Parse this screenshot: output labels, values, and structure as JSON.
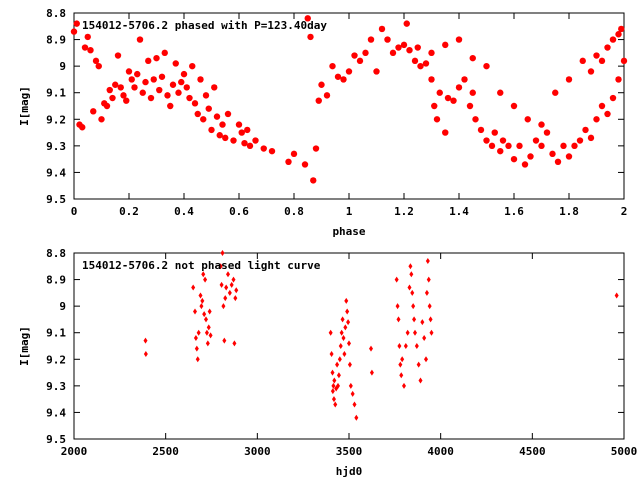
{
  "chart_data": [
    {
      "type": "scatter",
      "title": "154012-5706.2 phased with P=123.40day",
      "xlabel": "phase",
      "ylabel": "I[mag]",
      "xlim": [
        0,
        2
      ],
      "ylim": [
        8.8,
        9.5
      ],
      "y_inverted": true,
      "grid": false,
      "xticks": [
        "0",
        "0.2",
        "0.4",
        "0.6",
        "0.8",
        "1",
        "1.2",
        "1.4",
        "1.6",
        "1.8",
        "2"
      ],
      "yticks": [
        "8.8",
        "8.9",
        "9",
        "9.1",
        "9.2",
        "9.3",
        "9.4",
        "9.5"
      ],
      "marker_color": "#ff0000",
      "points": [
        [
          0.0,
          8.87
        ],
        [
          0.01,
          8.84
        ],
        [
          0.02,
          9.22
        ],
        [
          0.03,
          9.23
        ],
        [
          0.04,
          8.93
        ],
        [
          0.05,
          8.89
        ],
        [
          0.06,
          8.94
        ],
        [
          0.07,
          9.17
        ],
        [
          0.08,
          8.98
        ],
        [
          0.09,
          9.0
        ],
        [
          0.1,
          9.2
        ],
        [
          0.11,
          9.14
        ],
        [
          0.12,
          9.15
        ],
        [
          0.13,
          9.09
        ],
        [
          0.14,
          9.12
        ],
        [
          0.15,
          9.07
        ],
        [
          0.16,
          8.96
        ],
        [
          0.17,
          9.08
        ],
        [
          0.18,
          9.11
        ],
        [
          0.19,
          9.13
        ],
        [
          0.2,
          9.02
        ],
        [
          0.21,
          9.05
        ],
        [
          0.22,
          9.08
        ],
        [
          0.23,
          9.03
        ],
        [
          0.24,
          8.9
        ],
        [
          0.25,
          9.1
        ],
        [
          0.26,
          9.06
        ],
        [
          0.27,
          8.98
        ],
        [
          0.28,
          9.12
        ],
        [
          0.29,
          9.05
        ],
        [
          0.3,
          8.97
        ],
        [
          0.31,
          9.09
        ],
        [
          0.32,
          9.04
        ],
        [
          0.33,
          8.95
        ],
        [
          0.34,
          9.11
        ],
        [
          0.35,
          9.15
        ],
        [
          0.36,
          9.07
        ],
        [
          0.37,
          8.99
        ],
        [
          0.38,
          9.1
        ],
        [
          0.39,
          9.06
        ],
        [
          0.4,
          9.03
        ],
        [
          0.41,
          9.08
        ],
        [
          0.42,
          9.12
        ],
        [
          0.43,
          9.0
        ],
        [
          0.44,
          9.14
        ],
        [
          0.45,
          9.18
        ],
        [
          0.46,
          9.05
        ],
        [
          0.47,
          9.2
        ],
        [
          0.48,
          9.11
        ],
        [
          0.49,
          9.16
        ],
        [
          0.5,
          9.24
        ],
        [
          0.51,
          9.08
        ],
        [
          0.52,
          9.19
        ],
        [
          0.53,
          9.26
        ],
        [
          0.54,
          9.22
        ],
        [
          0.55,
          9.27
        ],
        [
          0.56,
          9.18
        ],
        [
          0.58,
          9.28
        ],
        [
          0.6,
          9.22
        ],
        [
          0.61,
          9.25
        ],
        [
          0.62,
          9.29
        ],
        [
          0.63,
          9.24
        ],
        [
          0.64,
          9.3
        ],
        [
          0.66,
          9.28
        ],
        [
          0.69,
          9.31
        ],
        [
          0.72,
          9.32
        ],
        [
          0.78,
          9.36
        ],
        [
          0.8,
          9.33
        ],
        [
          0.84,
          9.37
        ],
        [
          0.85,
          8.82
        ],
        [
          0.86,
          8.89
        ],
        [
          0.87,
          9.43
        ],
        [
          0.88,
          9.31
        ],
        [
          0.89,
          9.13
        ],
        [
          0.9,
          9.07
        ],
        [
          0.92,
          9.11
        ],
        [
          0.94,
          9.0
        ],
        [
          0.96,
          9.04
        ],
        [
          0.98,
          9.05
        ],
        [
          1.0,
          9.02
        ],
        [
          1.02,
          8.96
        ],
        [
          1.04,
          8.98
        ],
        [
          1.06,
          8.95
        ],
        [
          1.08,
          8.9
        ],
        [
          1.1,
          9.02
        ],
        [
          1.12,
          8.86
        ],
        [
          1.14,
          8.9
        ],
        [
          1.16,
          8.95
        ],
        [
          1.18,
          8.93
        ],
        [
          1.2,
          8.92
        ],
        [
          1.21,
          8.84
        ],
        [
          1.22,
          8.94
        ],
        [
          1.24,
          8.98
        ],
        [
          1.25,
          8.93
        ],
        [
          1.26,
          9.0
        ],
        [
          1.28,
          8.99
        ],
        [
          1.3,
          9.05
        ],
        [
          1.31,
          9.15
        ],
        [
          1.32,
          9.2
        ],
        [
          1.33,
          9.1
        ],
        [
          1.35,
          9.25
        ],
        [
          1.36,
          9.12
        ],
        [
          1.38,
          9.13
        ],
        [
          1.4,
          9.08
        ],
        [
          1.42,
          9.05
        ],
        [
          1.44,
          9.15
        ],
        [
          1.45,
          9.1
        ],
        [
          1.46,
          9.2
        ],
        [
          1.48,
          9.24
        ],
        [
          1.5,
          9.28
        ],
        [
          1.52,
          9.3
        ],
        [
          1.53,
          9.25
        ],
        [
          1.55,
          9.32
        ],
        [
          1.56,
          9.28
        ],
        [
          1.58,
          9.3
        ],
        [
          1.6,
          9.35
        ],
        [
          1.62,
          9.3
        ],
        [
          1.64,
          9.37
        ],
        [
          1.66,
          9.34
        ],
        [
          1.68,
          9.28
        ],
        [
          1.7,
          9.3
        ],
        [
          1.72,
          9.25
        ],
        [
          1.74,
          9.33
        ],
        [
          1.76,
          9.36
        ],
        [
          1.78,
          9.3
        ],
        [
          1.8,
          9.34
        ],
        [
          1.82,
          9.3
        ],
        [
          1.84,
          9.28
        ],
        [
          1.86,
          9.24
        ],
        [
          1.88,
          9.27
        ],
        [
          1.9,
          9.2
        ],
        [
          1.92,
          9.15
        ],
        [
          1.94,
          9.18
        ],
        [
          1.96,
          9.12
        ],
        [
          1.98,
          9.05
        ],
        [
          2.0,
          8.98
        ],
        [
          1.3,
          8.95
        ],
        [
          1.35,
          8.92
        ],
        [
          1.4,
          8.9
        ],
        [
          1.45,
          8.97
        ],
        [
          1.5,
          9.0
        ],
        [
          1.55,
          9.1
        ],
        [
          1.6,
          9.15
        ],
        [
          1.65,
          9.2
        ],
        [
          1.7,
          9.22
        ],
        [
          1.75,
          9.1
        ],
        [
          1.8,
          9.05
        ],
        [
          1.85,
          8.98
        ],
        [
          1.88,
          9.02
        ],
        [
          1.9,
          8.96
        ],
        [
          1.92,
          8.98
        ],
        [
          1.94,
          8.93
        ],
        [
          1.96,
          8.9
        ],
        [
          1.98,
          8.88
        ],
        [
          1.99,
          8.86
        ]
      ]
    },
    {
      "type": "scatter",
      "title": "154012-5706.2 not phased light curve",
      "xlabel": "hjd0",
      "ylabel": "I[mag]",
      "xlim": [
        2000,
        5000
      ],
      "ylim": [
        8.8,
        9.5
      ],
      "y_inverted": true,
      "grid": false,
      "xticks": [
        "2000",
        "2500",
        "3000",
        "3500",
        "4000",
        "4500",
        "5000"
      ],
      "yticks": [
        "8.8",
        "8.9",
        "9",
        "9.1",
        "9.2",
        "9.3",
        "9.4",
        "9.5"
      ],
      "marker_color": "#ff0000",
      "points": [
        [
          2390,
          9.13
        ],
        [
          2392,
          9.18
        ],
        [
          2650,
          8.93
        ],
        [
          2660,
          9.02
        ],
        [
          2665,
          9.12
        ],
        [
          2670,
          9.16
        ],
        [
          2675,
          9.2
        ],
        [
          2680,
          9.1
        ],
        [
          2690,
          8.96
        ],
        [
          2695,
          9.0
        ],
        [
          2700,
          8.98
        ],
        [
          2705,
          8.88
        ],
        [
          2710,
          9.03
        ],
        [
          2715,
          8.9
        ],
        [
          2720,
          9.05
        ],
        [
          2725,
          9.1
        ],
        [
          2730,
          9.14
        ],
        [
          2735,
          9.08
        ],
        [
          2740,
          9.02
        ],
        [
          2745,
          9.11
        ],
        [
          2800,
          8.85
        ],
        [
          2805,
          8.92
        ],
        [
          2810,
          8.8
        ],
        [
          2815,
          9.0
        ],
        [
          2820,
          9.13
        ],
        [
          2825,
          8.97
        ],
        [
          2830,
          8.93
        ],
        [
          2840,
          8.88
        ],
        [
          2850,
          8.95
        ],
        [
          2860,
          8.92
        ],
        [
          2870,
          8.9
        ],
        [
          2875,
          9.14
        ],
        [
          2880,
          8.97
        ],
        [
          2885,
          8.94
        ],
        [
          3400,
          9.1
        ],
        [
          3405,
          9.18
        ],
        [
          3410,
          9.25
        ],
        [
          3412,
          9.32
        ],
        [
          3415,
          9.3
        ],
        [
          3418,
          9.35
        ],
        [
          3420,
          9.28
        ],
        [
          3425,
          9.37
        ],
        [
          3430,
          9.31
        ],
        [
          3435,
          9.22
        ],
        [
          3440,
          9.3
        ],
        [
          3445,
          9.26
        ],
        [
          3450,
          9.2
        ],
        [
          3455,
          9.15
        ],
        [
          3460,
          9.1
        ],
        [
          3465,
          9.05
        ],
        [
          3470,
          9.12
        ],
        [
          3475,
          9.18
        ],
        [
          3480,
          9.08
        ],
        [
          3485,
          8.98
        ],
        [
          3490,
          9.02
        ],
        [
          3495,
          9.06
        ],
        [
          3500,
          9.14
        ],
        [
          3505,
          9.22
        ],
        [
          3510,
          9.3
        ],
        [
          3520,
          9.33
        ],
        [
          3530,
          9.37
        ],
        [
          3540,
          9.42
        ],
        [
          3620,
          9.16
        ],
        [
          3625,
          9.25
        ],
        [
          3760,
          8.9
        ],
        [
          3765,
          9.0
        ],
        [
          3770,
          9.05
        ],
        [
          3775,
          9.15
        ],
        [
          3780,
          9.22
        ],
        [
          3785,
          9.26
        ],
        [
          3790,
          9.2
        ],
        [
          3800,
          9.3
        ],
        [
          3810,
          9.15
        ],
        [
          3820,
          9.1
        ],
        [
          3830,
          8.93
        ],
        [
          3835,
          8.85
        ],
        [
          3840,
          8.88
        ],
        [
          3845,
          8.95
        ],
        [
          3850,
          9.0
        ],
        [
          3855,
          9.05
        ],
        [
          3860,
          9.1
        ],
        [
          3870,
          9.15
        ],
        [
          3880,
          9.22
        ],
        [
          3890,
          9.28
        ],
        [
          3900,
          9.06
        ],
        [
          3910,
          9.12
        ],
        [
          3920,
          9.2
        ],
        [
          3925,
          8.95
        ],
        [
          3930,
          8.83
        ],
        [
          3935,
          8.9
        ],
        [
          3940,
          9.0
        ],
        [
          3945,
          9.05
        ],
        [
          3950,
          9.1
        ],
        [
          4960,
          8.96
        ]
      ]
    }
  ]
}
